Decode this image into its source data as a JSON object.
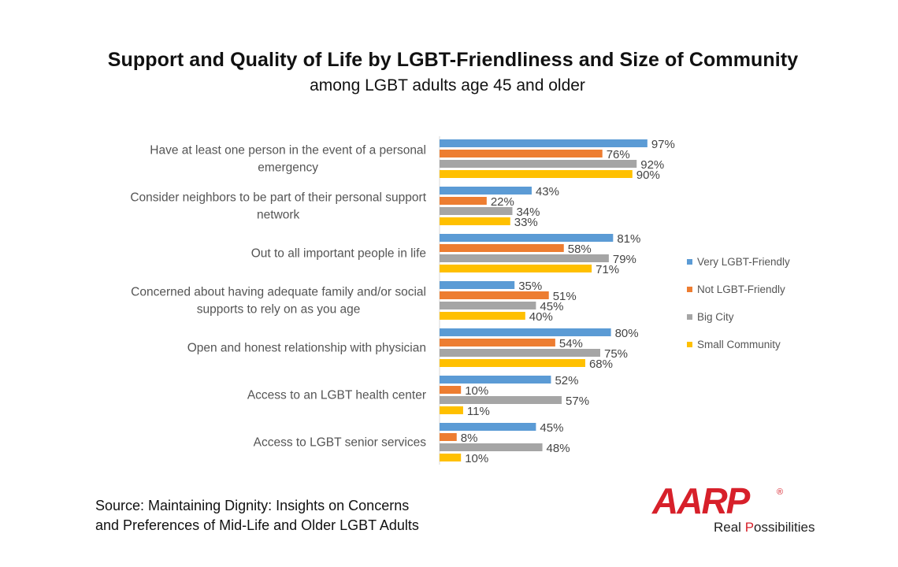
{
  "title": "Support and Quality of Life by LGBT-Friendliness and Size of Community",
  "subtitle": "among LGBT adults age 45 and older",
  "source_lines": [
    "Source: Maintaining Dignity: Insights on Concerns",
    "and Preferences of Mid-Life and Older LGBT Adults"
  ],
  "logo": {
    "word": "AARP",
    "registered": "®",
    "tagline_prefix": "Real ",
    "tagline_p": "P",
    "tagline_rest": "ossibilities",
    "color": "#d7202a"
  },
  "chart_data": {
    "type": "bar",
    "orientation": "horizontal",
    "categories": [
      [
        "Have at least one person in the event of a personal",
        "emergency"
      ],
      [
        "Consider neighbors to be part of their personal support",
        "network"
      ],
      [
        "Out to all important people in life"
      ],
      [
        "Concerned about having adequate family and/or social",
        "supports to rely on as you age"
      ],
      [
        "Open and honest relationship with physician"
      ],
      [
        "Access to an LGBT health center"
      ],
      [
        "Access to LGBT senior services"
      ]
    ],
    "series": [
      {
        "name": "Very LGBT-Friendly",
        "color": "#5b9bd5",
        "values": [
          97,
          43,
          81,
          35,
          80,
          52,
          45
        ]
      },
      {
        "name": "Not LGBT-Friendly",
        "color": "#ed7d31",
        "values": [
          76,
          22,
          58,
          51,
          54,
          10,
          8
        ]
      },
      {
        "name": "Big City",
        "color": "#a5a5a5",
        "values": [
          92,
          34,
          79,
          45,
          75,
          57,
          48
        ]
      },
      {
        "name": "Small Community",
        "color": "#ffc000",
        "values": [
          90,
          33,
          71,
          40,
          68,
          11,
          10
        ]
      }
    ],
    "value_suffix": "%",
    "xlim": [
      0,
      100
    ],
    "grid": false,
    "legend_position": "right"
  }
}
